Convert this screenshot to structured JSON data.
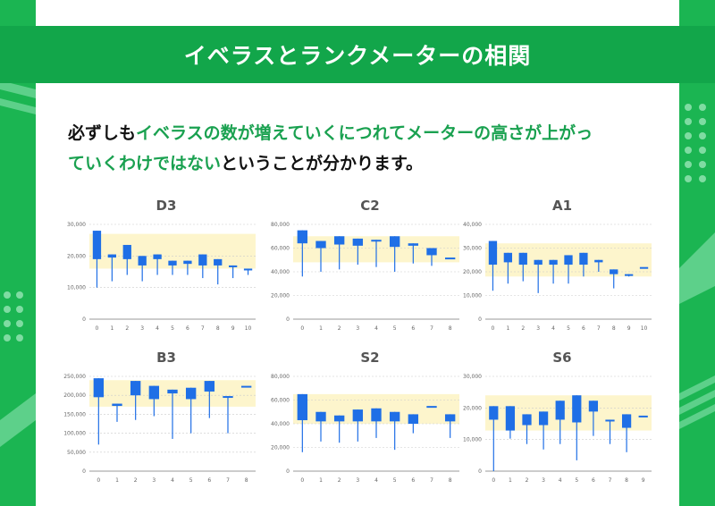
{
  "title": "イベラスとランクメーターの相関",
  "caption": {
    "line1_plain": "必ずしも",
    "line1_hl": "イベラスの数が増えていくにつれてメーターの高さが上がっ",
    "line2_hl": "ていくわけではない",
    "line2_plain": "ということが分かります。"
  },
  "colors": {
    "brand_green": "#1bb552",
    "banner_green": "#12a64a",
    "candle_blue": "#1f6fe6",
    "band_yellow": "#fdf5cc"
  },
  "chart_data": [
    {
      "title": "D3",
      "type": "candlestick",
      "ylim": [
        0,
        30000
      ],
      "yticks": [
        "0",
        "10,000",
        "20,000",
        "30,000"
      ],
      "band": [
        16000,
        27000
      ],
      "x": [
        "0",
        "1",
        "2",
        "3",
        "4",
        "5",
        "6",
        "7",
        "8",
        "9",
        "10"
      ],
      "candles": [
        {
          "open": 28000,
          "close": 19000,
          "low": 10000,
          "high": 28000
        },
        {
          "open": 20500,
          "close": 19500,
          "low": 12000,
          "high": 20500
        },
        {
          "open": 23500,
          "close": 19000,
          "low": 14000,
          "high": 23500
        },
        {
          "open": 20000,
          "close": 17000,
          "low": 12000,
          "high": 20000
        },
        {
          "open": 20500,
          "close": 19000,
          "low": 14000,
          "high": 20500
        },
        {
          "open": 18500,
          "close": 17000,
          "low": 14000,
          "high": 18500
        },
        {
          "open": 18500,
          "close": 17500,
          "low": 14000,
          "high": 18500
        },
        {
          "open": 20500,
          "close": 17000,
          "low": 13000,
          "high": 20500
        },
        {
          "open": 19000,
          "close": 17000,
          "low": 11000,
          "high": 19000
        },
        {
          "open": 17000,
          "close": 16500,
          "low": 13000,
          "high": 17000
        },
        {
          "open": 16000,
          "close": 16000,
          "low": 14000,
          "high": 16000
        }
      ]
    },
    {
      "title": "C2",
      "type": "candlestick",
      "ylim": [
        0,
        80000
      ],
      "yticks": [
        "0",
        "20,000",
        "40,000",
        "60,000",
        "80,000"
      ],
      "band": [
        48000,
        70000
      ],
      "x": [
        "0",
        "1",
        "2",
        "3",
        "4",
        "5",
        "6",
        "7",
        "8"
      ],
      "candles": [
        {
          "open": 75000,
          "close": 64000,
          "low": 36000,
          "high": 75000
        },
        {
          "open": 66000,
          "close": 60000,
          "low": 40000,
          "high": 66000
        },
        {
          "open": 70000,
          "close": 63000,
          "low": 42000,
          "high": 70000
        },
        {
          "open": 68000,
          "close": 62000,
          "low": 46000,
          "high": 68000
        },
        {
          "open": 67000,
          "close": 66000,
          "low": 44000,
          "high": 67000
        },
        {
          "open": 70000,
          "close": 61000,
          "low": 40000,
          "high": 70000
        },
        {
          "open": 64000,
          "close": 62000,
          "low": 47000,
          "high": 64000
        },
        {
          "open": 60000,
          "close": 54000,
          "low": 45000,
          "high": 60000
        },
        {
          "open": 52000,
          "close": 52000,
          "low": 52000,
          "high": 52000
        }
      ]
    },
    {
      "title": "A1",
      "type": "candlestick",
      "ylim": [
        0,
        40000
      ],
      "yticks": [
        "0",
        "10,000",
        "20,000",
        "30,000",
        "40,000"
      ],
      "band": [
        18000,
        32000
      ],
      "x": [
        "0",
        "1",
        "2",
        "3",
        "4",
        "5",
        "6",
        "7",
        "8",
        "9",
        "10"
      ],
      "candles": [
        {
          "open": 33000,
          "close": 23000,
          "low": 12000,
          "high": 33000
        },
        {
          "open": 28000,
          "close": 24000,
          "low": 15000,
          "high": 28000
        },
        {
          "open": 28000,
          "close": 23000,
          "low": 16000,
          "high": 28000
        },
        {
          "open": 25000,
          "close": 23000,
          "low": 11000,
          "high": 25000
        },
        {
          "open": 25000,
          "close": 23000,
          "low": 15000,
          "high": 25000
        },
        {
          "open": 27000,
          "close": 23000,
          "low": 15000,
          "high": 27000
        },
        {
          "open": 28000,
          "close": 23000,
          "low": 18000,
          "high": 28000
        },
        {
          "open": 25000,
          "close": 24000,
          "low": 20000,
          "high": 25000
        },
        {
          "open": 21000,
          "close": 19000,
          "low": 13000,
          "high": 21000
        },
        {
          "open": 19000,
          "close": 18500,
          "low": 18000,
          "high": 19000
        },
        {
          "open": 22000,
          "close": 22000,
          "low": 22000,
          "high": 22000
        }
      ]
    },
    {
      "title": "B3",
      "type": "candlestick",
      "ylim": [
        0,
        250000
      ],
      "yticks": [
        "0",
        "50,000",
        "100,000",
        "150,000",
        "200,000",
        "250,000"
      ],
      "band": [
        170000,
        240000
      ],
      "x": [
        "0",
        "1",
        "2",
        "3",
        "4",
        "5",
        "6",
        "7",
        "8"
      ],
      "candles": [
        {
          "open": 245000,
          "close": 195000,
          "low": 70000,
          "high": 245000
        },
        {
          "open": 178000,
          "close": 172000,
          "low": 130000,
          "high": 178000
        },
        {
          "open": 238000,
          "close": 200000,
          "low": 135000,
          "high": 238000
        },
        {
          "open": 225000,
          "close": 190000,
          "low": 145000,
          "high": 225000
        },
        {
          "open": 215000,
          "close": 205000,
          "low": 85000,
          "high": 215000
        },
        {
          "open": 220000,
          "close": 190000,
          "low": 100000,
          "high": 220000
        },
        {
          "open": 238000,
          "close": 210000,
          "low": 140000,
          "high": 238000
        },
        {
          "open": 198000,
          "close": 195000,
          "low": 100000,
          "high": 198000
        },
        {
          "open": 225000,
          "close": 225000,
          "low": 225000,
          "high": 225000
        }
      ]
    },
    {
      "title": "S2",
      "type": "candlestick",
      "ylim": [
        0,
        80000
      ],
      "yticks": [
        "0",
        "20,000",
        "40,000",
        "60,000",
        "80,000"
      ],
      "band": [
        40000,
        65000
      ],
      "x": [
        "0",
        "1",
        "2",
        "3",
        "4",
        "5",
        "6",
        "7",
        "8"
      ],
      "candles": [
        {
          "open": 65000,
          "close": 43000,
          "low": 16000,
          "high": 65000
        },
        {
          "open": 50000,
          "close": 42000,
          "low": 25000,
          "high": 50000
        },
        {
          "open": 47000,
          "close": 42000,
          "low": 24000,
          "high": 47000
        },
        {
          "open": 52000,
          "close": 42000,
          "low": 25000,
          "high": 52000
        },
        {
          "open": 53000,
          "close": 42000,
          "low": 28000,
          "high": 53000
        },
        {
          "open": 50000,
          "close": 42000,
          "low": 18000,
          "high": 50000
        },
        {
          "open": 48000,
          "close": 40000,
          "low": 32000,
          "high": 48000
        },
        {
          "open": 55000,
          "close": 55000,
          "low": 55000,
          "high": 55000
        },
        {
          "open": 48000,
          "close": 42000,
          "low": 28000,
          "high": 48000
        }
      ]
    },
    {
      "title": "S6",
      "type": "candlestick",
      "ylim": [
        0,
        35000
      ],
      "yticks": [
        "0",
        "10,000",
        "20,000",
        "30,000"
      ],
      "band": [
        15000,
        28000
      ],
      "x": [
        "0",
        "1",
        "2",
        "3",
        "4",
        "5",
        "6",
        "7",
        "8",
        "9"
      ],
      "candles": [
        {
          "open": 24000,
          "close": 19000,
          "low": 0,
          "high": 24000
        },
        {
          "open": 24000,
          "close": 15000,
          "low": 12000,
          "high": 24000
        },
        {
          "open": 21000,
          "close": 17000,
          "low": 10000,
          "high": 21000
        },
        {
          "open": 22000,
          "close": 17000,
          "low": 8000,
          "high": 22000
        },
        {
          "open": 26000,
          "close": 19000,
          "low": 10000,
          "high": 26000
        },
        {
          "open": 28000,
          "close": 18000,
          "low": 4000,
          "high": 28000
        },
        {
          "open": 26000,
          "close": 22000,
          "low": 13000,
          "high": 26000
        },
        {
          "open": 19000,
          "close": 19000,
          "low": 10000,
          "high": 19000
        },
        {
          "open": 21000,
          "close": 16000,
          "low": 7000,
          "high": 21000
        },
        {
          "open": 20500,
          "close": 20500,
          "low": 20500,
          "high": 20500
        }
      ]
    }
  ]
}
